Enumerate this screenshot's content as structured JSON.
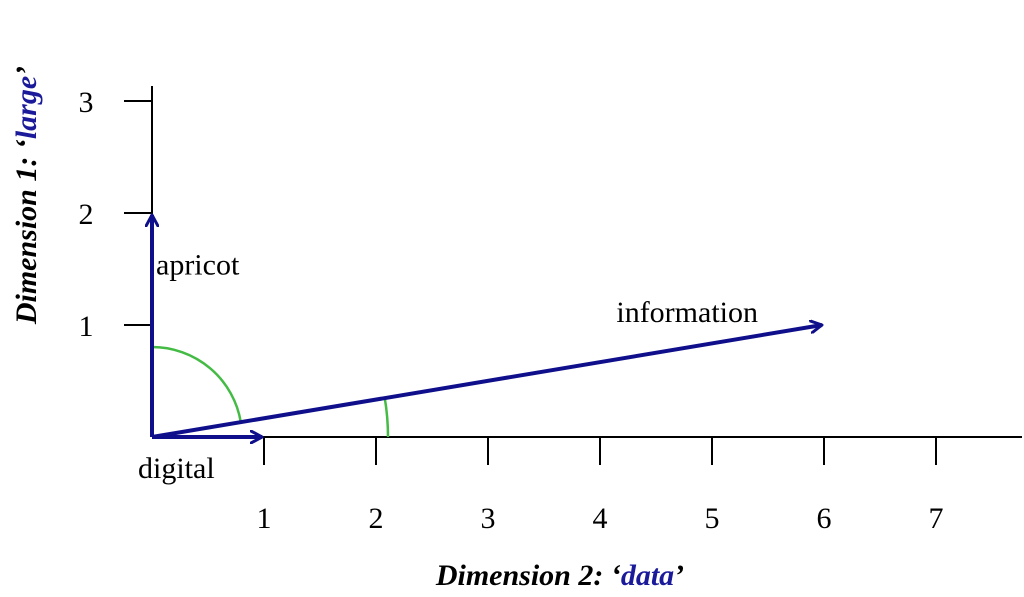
{
  "chart_data": {
    "type": "vector-diagram",
    "xlabel": {
      "prefix": "Dimension 2: ‘",
      "highlight": "data",
      "suffix": "’"
    },
    "ylabel": {
      "prefix": "Dimension 1: ‘",
      "highlight": "large",
      "suffix": "’"
    },
    "x_ticks": [
      "1",
      "2",
      "3",
      "4",
      "5",
      "6",
      "7"
    ],
    "y_ticks": [
      "1",
      "2",
      "3"
    ],
    "xlim": [
      0,
      7.7
    ],
    "ylim": [
      0,
      3.0
    ],
    "vectors": [
      {
        "word": "apricot",
        "x": 0,
        "y": 2
      },
      {
        "word": "digital",
        "x": 1,
        "y": 0
      },
      {
        "word": "information",
        "x": 6,
        "y": 1
      }
    ],
    "angle_arcs": [
      {
        "between": [
          "apricot",
          "information"
        ]
      },
      {
        "between": [
          "information",
          "x-axis"
        ]
      }
    ],
    "colors": {
      "vector": "#0f0f8c",
      "highlight": "#1a1a9a",
      "arc": "#44bb44",
      "axis": "#000000"
    }
  }
}
